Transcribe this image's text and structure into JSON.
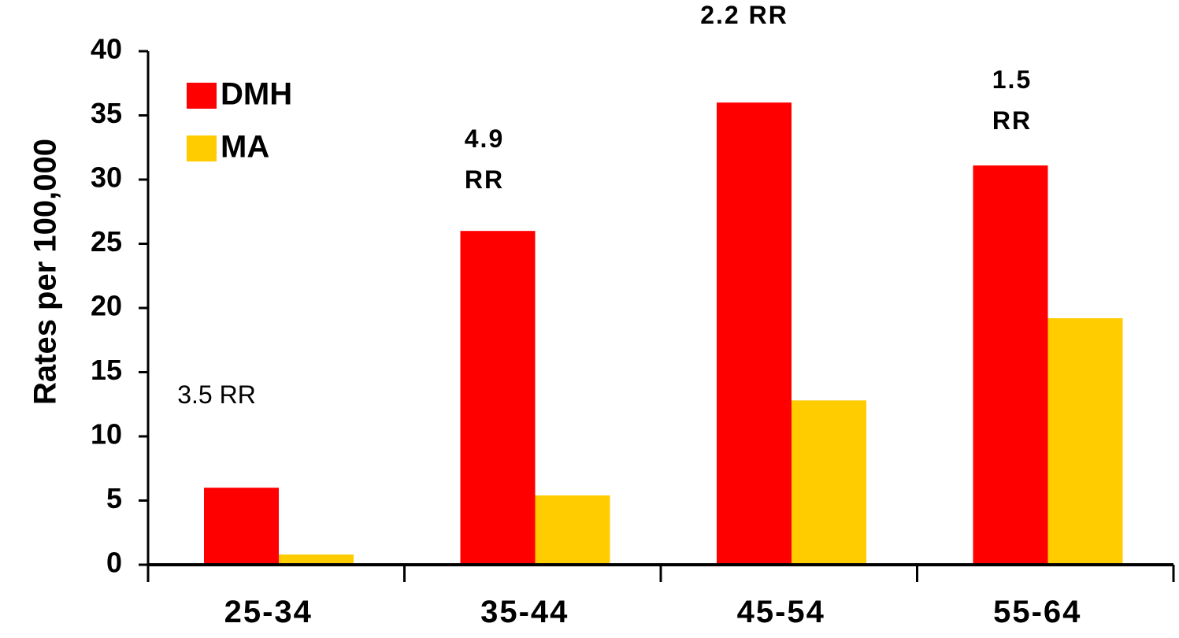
{
  "chart_data": {
    "type": "bar",
    "categories": [
      "25-34",
      "35-44",
      "45-54",
      "55-64"
    ],
    "series": [
      {
        "name": "DMH",
        "color": "#ff0000",
        "values": [
          6,
          26,
          36,
          31.1
        ]
      },
      {
        "name": "MA",
        "color": "#ffcc00",
        "values": [
          0.8,
          5.4,
          12.8,
          19.2
        ]
      }
    ],
    "ylabel": "Rates per 100,000",
    "xlabel": "",
    "ylim": [
      0,
      40
    ],
    "yticks": [
      "0",
      "5",
      "10",
      "15",
      "20",
      "25",
      "30",
      "35",
      "40"
    ],
    "grid": false,
    "legend": "top-left",
    "annotations": [
      {
        "category": "25-34",
        "lines": [
          "3.5 RR"
        ],
        "bold": false
      },
      {
        "category": "35-44",
        "lines": [
          "4.9",
          "RR"
        ],
        "bold": true
      },
      {
        "category": "45-54",
        "lines": [
          "2.2 RR"
        ],
        "bold": true
      },
      {
        "category": "55-64",
        "lines": [
          "1.5",
          "RR"
        ],
        "bold": true
      }
    ]
  }
}
